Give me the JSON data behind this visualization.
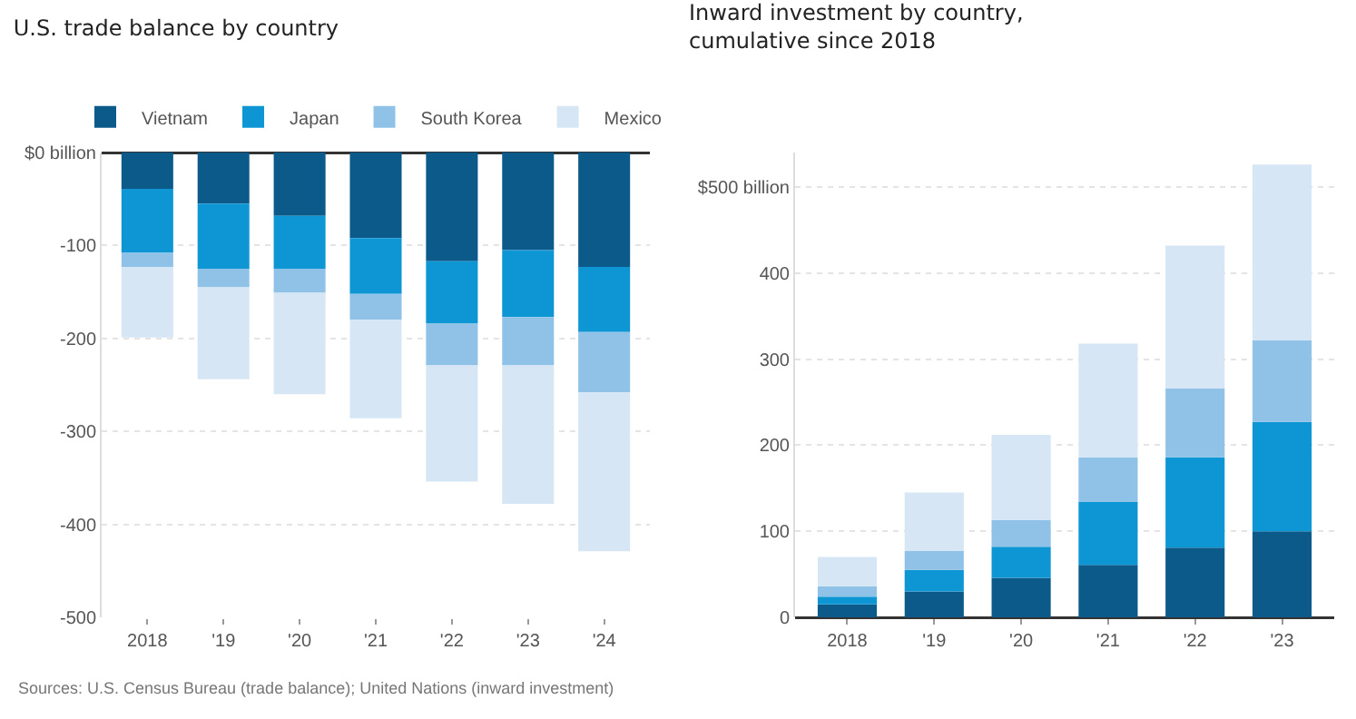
{
  "chart_data": [
    {
      "type": "bar",
      "stacked": true,
      "title": "U.S. trade balance by country",
      "categories": [
        "2018",
        "'19",
        "'20",
        "'21",
        "'22",
        "'23",
        "'24"
      ],
      "series": [
        {
          "name": "Vietnam",
          "color": "#0b5a8a",
          "values": [
            -39,
            -55,
            -68,
            -92,
            -117,
            -105,
            -123
          ]
        },
        {
          "name": "Japan",
          "color": "#0e96d4",
          "values": [
            -69,
            -70,
            -57,
            -60,
            -67,
            -72,
            -70
          ]
        },
        {
          "name": "South Korea",
          "color": "#8fc2e6",
          "values": [
            -15,
            -20,
            -26,
            -28,
            -45,
            -52,
            -65
          ]
        },
        {
          "name": "Mexico",
          "color": "#d6e6f5",
          "values": [
            -76,
            -99,
            -109,
            -106,
            -125,
            -149,
            -171
          ]
        }
      ],
      "ylim": [
        -500,
        0
      ],
      "yticks": [
        {
          "value": 0,
          "label": "$0 billion"
        },
        -100,
        -200,
        -300,
        -400,
        -500
      ],
      "grid": "y",
      "legend": "top left",
      "annotations": [
        "Sources: U.S. Census Bureau (trade balance); United Nations (inward investment)"
      ]
    },
    {
      "type": "bar",
      "stacked": true,
      "title": "Inward investment by country,\ncumulative since 2018",
      "categories": [
        "2018",
        "'19",
        "'20",
        "'21",
        "'22",
        "'23"
      ],
      "series": [
        {
          "color": "#0b5a8a",
          "values": [
            15,
            30,
            46,
            61,
            81,
            100
          ]
        },
        {
          "color": "#0e96d4",
          "values": [
            9,
            25,
            36,
            73,
            105,
            127
          ]
        },
        {
          "color": "#8fc2e6",
          "values": [
            12,
            22,
            31,
            52,
            80,
            95
          ]
        },
        {
          "color": "#d6e6f5",
          "values": [
            34,
            68,
            99,
            132,
            166,
            204
          ]
        }
      ],
      "ylim": [
        0,
        540
      ],
      "yticks": [
        0,
        100,
        200,
        300,
        400,
        {
          "value": 500,
          "label": "$500 billion"
        }
      ],
      "grid": "y"
    }
  ]
}
